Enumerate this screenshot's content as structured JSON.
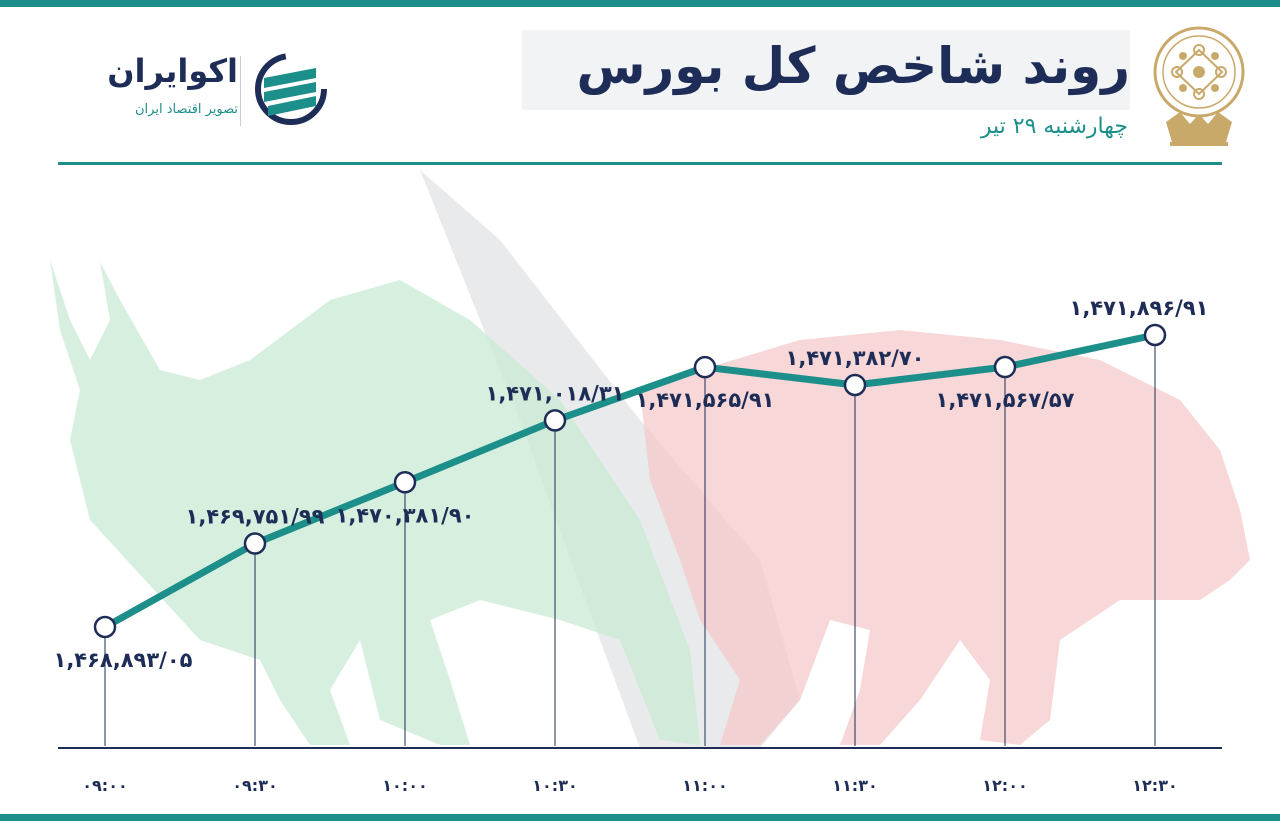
{
  "header": {
    "title": "روند شاخص کل بورس",
    "subtitle": "چهارشنبه ۲۹ تیر"
  },
  "brand": {
    "name": "اکوایران",
    "tagline": "تصویر اقتصاد ایران"
  },
  "colors": {
    "accent": "#1d8f8a",
    "text": "#1e2d57",
    "bull": "#c9ead3",
    "bear": "#f3c6c6",
    "gold": "#c9a96a"
  },
  "chart_data": {
    "type": "line",
    "categories": [
      "۰۹:۰۰",
      "۰۹:۳۰",
      "۱۰:۰۰",
      "۱۰:۳۰",
      "۱۱:۰۰",
      "۱۱:۳۰",
      "۱۲:۰۰",
      "۱۲:۳۰"
    ],
    "values": [
      1468893.05,
      1469751.99,
      1470381.9,
      1471018.31,
      1471565.91,
      1471382.7,
      1471567.57,
      1471896.91
    ],
    "data_labels": [
      "۱,۴۶۸,۸۹۳/۰۵",
      "۱,۴۶۹,۷۵۱/۹۹",
      "۱,۴۷۰,۳۸۱/۹۰",
      "۱,۴۷۱,۰۱۸/۳۱",
      "۱,۴۷۱,۵۶۵/۹۱",
      "۱,۴۷۱,۳۸۲/۷۰",
      "۱,۴۷۱,۵۶۷/۵۷",
      "۱,۴۷۱,۸۹۶/۹۱"
    ],
    "label_positions": [
      "below",
      "above",
      "below",
      "above",
      "below",
      "above",
      "below",
      "above"
    ],
    "title": "روند شاخص کل بورس",
    "xlabel": "",
    "ylabel": "",
    "grid": false,
    "legend": "none",
    "line_color": "#1d8f8a"
  }
}
